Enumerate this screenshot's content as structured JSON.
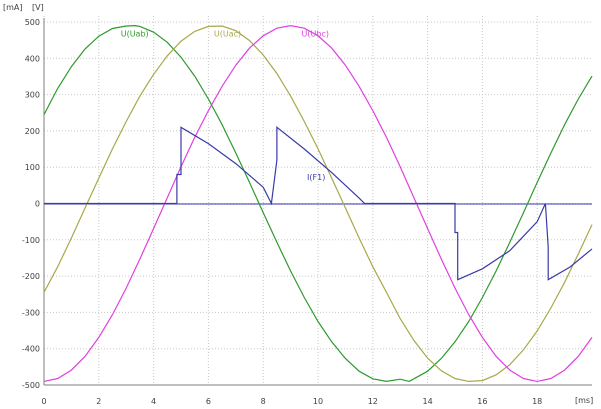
{
  "chart_data": {
    "type": "line",
    "left_unit": "[mA]",
    "right_unit": "[V]",
    "x_unit": "[ms]",
    "xlim": [
      0,
      20
    ],
    "ylim": [
      -500,
      500
    ],
    "x_ticks": [
      0,
      2,
      4,
      6,
      8,
      10,
      12,
      14,
      16,
      18
    ],
    "x_tick_labels": [
      "0",
      "2",
      "4",
      "6",
      "8",
      "10",
      "12",
      "14",
      "16",
      "18"
    ],
    "y_ticks": [
      500,
      400,
      300,
      200,
      100,
      0,
      -100,
      -200,
      -300,
      -400,
      -500
    ],
    "y_tick_labels": [
      "500",
      "400",
      "300",
      "200",
      "100",
      "0",
      "-100",
      "-200",
      "-300",
      "-400",
      "-500"
    ],
    "series": [
      {
        "name": "U(Uab)",
        "color": "#2e9a2e",
        "label_at": [
          2.8,
          460
        ],
        "x": [
          0,
          0.5,
          1,
          1.5,
          2,
          2.5,
          3,
          3.33,
          3.5,
          4,
          4.5,
          5,
          5.5,
          6,
          6.5,
          7,
          7.5,
          8,
          8.5,
          9,
          9.5,
          10,
          10.5,
          11,
          11.5,
          12,
          12.5,
          13,
          13.33,
          13.5,
          14,
          14.5,
          15,
          15.5,
          16,
          16.5,
          17,
          17.5,
          18,
          18.5,
          19,
          19.5,
          20
        ],
        "values": [
          245,
          317,
          377,
          426,
          461,
          482,
          489,
          490,
          488,
          472,
          444,
          403,
          351,
          288,
          217,
          139,
          58,
          -25,
          -107,
          -186,
          -259,
          -325,
          -381,
          -427,
          -462,
          -483,
          -490,
          -484,
          -490,
          -483,
          -462,
          -427,
          -381,
          -325,
          -259,
          -186,
          -107,
          -25,
          58,
          139,
          217,
          288,
          351
        ]
      },
      {
        "name": "U(Uac)",
        "color": "#a8a84a",
        "label_at": [
          6.2,
          460
        ],
        "x": [
          0,
          0.5,
          1,
          1.5,
          2,
          2.5,
          3,
          3.5,
          4,
          4.5,
          5,
          5.5,
          6,
          6.5,
          7,
          7.5,
          8,
          8.5,
          9,
          9.5,
          10,
          10.5,
          11,
          11.5,
          12,
          12.5,
          13,
          13.5,
          14,
          14.5,
          15,
          15.5,
          16,
          16.5,
          17,
          17.5,
          18,
          18.5,
          19,
          19.5,
          20
        ],
        "values": [
          -245,
          -174,
          -95,
          -12,
          70,
          151,
          226,
          296,
          356,
          407,
          447,
          474,
          488,
          489,
          476,
          449,
          409,
          358,
          296,
          226,
          151,
          70,
          -12,
          -95,
          -174,
          -245,
          -317,
          -377,
          -426,
          -461,
          -482,
          -490,
          -488,
          -472,
          -444,
          -403,
          -351,
          -288,
          -217,
          -139,
          -58
        ]
      },
      {
        "name": "U(Ubc)",
        "color": "#e040e0",
        "label_at": [
          9.4,
          460
        ],
        "x": [
          0,
          0.5,
          1,
          1.5,
          2,
          2.5,
          3,
          3.5,
          4,
          4.5,
          5,
          5.5,
          6,
          6.5,
          7,
          7.5,
          8,
          8.5,
          9,
          9.5,
          10,
          10.5,
          11,
          11.5,
          12,
          12.5,
          13,
          13.5,
          14,
          14.5,
          15,
          15.5,
          16,
          16.5,
          17,
          17.5,
          18,
          18.5,
          19,
          19.5,
          20
        ],
        "values": [
          -490,
          -482,
          -459,
          -421,
          -369,
          -306,
          -233,
          -153,
          -69,
          16,
          101,
          182,
          256,
          323,
          381,
          428,
          462,
          483,
          490,
          483,
          462,
          428,
          381,
          323,
          256,
          182,
          101,
          16,
          -69,
          -153,
          -233,
          -306,
          -369,
          -421,
          -459,
          -482,
          -490,
          -482,
          -459,
          -421,
          -369
        ]
      },
      {
        "name": "I(F1)",
        "color": "#3a3aa8",
        "label_at": [
          9.6,
          65
        ],
        "x": [
          0,
          4.85,
          4.85,
          5.0,
          5.0,
          6.0,
          7.0,
          8.0,
          8.3,
          8.3,
          8.5,
          8.5,
          9.5,
          10.5,
          11.5,
          11.7,
          15.0,
          15.0,
          15.1,
          15.1,
          16.0,
          17.0,
          18.0,
          18.3,
          18.3,
          18.4,
          18.4,
          19.2,
          20.0
        ],
        "values": [
          0,
          0,
          80,
          80,
          210,
          165,
          110,
          45,
          0,
          0,
          120,
          210,
          150,
          85,
          15,
          0,
          0,
          -80,
          -80,
          -210,
          -180,
          -130,
          -50,
          0,
          0,
          -120,
          -210,
          -175,
          -125
        ]
      }
    ]
  }
}
